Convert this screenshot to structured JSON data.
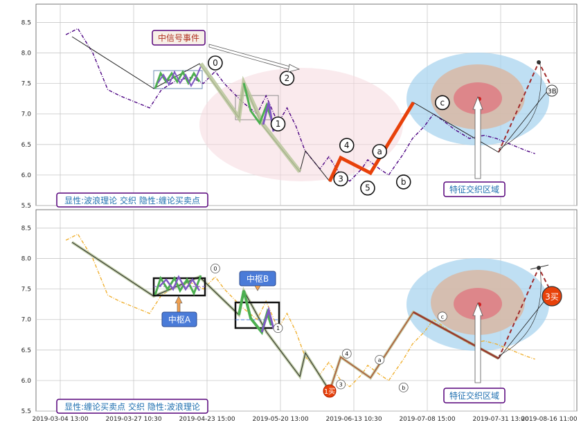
{
  "colors": {
    "grid": "#c8c8c8",
    "price_top": "#4b0082",
    "price_bottom": "#f0b030",
    "wave_orange": "#e8410a",
    "pink_ellipse": "#f6d9de",
    "blue_ellipse": "#a9d4ef",
    "tan_ellipse": "#d8b9a3",
    "red_ellipse": "#de7c84",
    "callout_fill": "#4a7bd8",
    "textbox_border": "#55007a",
    "textbox_text": "#1e6fb0",
    "signal_text": "#b03020",
    "dashed_projection": "#a02a2a"
  },
  "chart_data": [
    {
      "type": "line",
      "title": "",
      "xlabel": "",
      "ylabel": "",
      "ylim": [
        5.5,
        8.8
      ],
      "yticks": [
        "5.5",
        "6.0",
        "6.5",
        "7.0",
        "7.5",
        "8.0",
        "8.5"
      ],
      "grid": true,
      "series": [
        {
          "x": [
            "2019-03-04",
            "2019-03-08",
            "2019-03-13",
            "2019-03-18",
            "2019-03-22",
            "2019-03-27",
            "2019-04-01",
            "2019-04-05",
            "2019-04-10",
            "2019-04-15",
            "2019-04-19",
            "2019-04-23",
            "2019-04-26",
            "2019-05-02",
            "2019-05-07",
            "2019-05-10",
            "2019-05-14",
            "2019-05-17",
            "2019-05-20",
            "2019-05-23",
            "2019-05-28",
            "2019-05-31",
            "2019-06-04",
            "2019-06-07",
            "2019-06-11",
            "2019-06-13",
            "2019-06-17",
            "2019-06-20",
            "2019-06-25",
            "2019-06-28",
            "2019-07-02",
            "2019-07-05",
            "2019-07-08",
            "2019-07-12",
            "2019-07-17",
            "2019-07-22",
            "2019-07-26",
            "2019-07-31",
            "2019-08-05",
            "2019-08-08"
          ],
          "y": [
            8.3,
            8.4,
            8.0,
            7.4,
            7.3,
            7.2,
            7.1,
            7.4,
            7.55,
            7.6,
            7.5,
            7.7,
            7.5,
            7.2,
            7.0,
            7.3,
            6.85,
            7.1,
            6.8,
            6.4,
            6.1,
            6.3,
            6.0,
            5.9,
            6.1,
            6.25,
            6.1,
            6.0,
            6.35,
            6.6,
            6.8,
            7.0,
            6.9,
            6.75,
            6.6,
            6.65,
            6.6,
            6.5,
            6.4,
            6.35
          ]
        }
      ],
      "wave_points": [
        {
          "label": "0",
          "x": "2019-04-23",
          "y": 7.7
        },
        {
          "label": "1",
          "x": "2019-05-14",
          "y": 6.95
        },
        {
          "label": "2",
          "x": "2019-05-17",
          "y": 7.45
        },
        {
          "label": "3",
          "x": "2019-06-04",
          "y": 6.05
        },
        {
          "label": "4",
          "x": "2019-06-06",
          "y": 6.35
        },
        {
          "label": "5",
          "x": "2019-06-13",
          "y": 5.9
        },
        {
          "label": "a",
          "x": "2019-06-17",
          "y": 6.25
        },
        {
          "label": "b",
          "x": "2019-06-25",
          "y": 6.0
        },
        {
          "label": "c",
          "x": "2019-07-08",
          "y": 7.05
        }
      ],
      "projection_label": "3B",
      "signal_label": "中信号事件",
      "region_label": "特征交织区域",
      "box_label": "显性:波浪理论 交织 隐性:缠论买卖点"
    },
    {
      "type": "line",
      "title": "",
      "xlabel": "",
      "ylabel": "",
      "ylim": [
        5.5,
        8.8
      ],
      "yticks": [
        "5.5",
        "6.0",
        "6.5",
        "7.0",
        "7.5",
        "8.0",
        "8.5"
      ],
      "grid": true,
      "xticks": [
        "2019-03-04 13:00",
        "2019-03-27 10:30",
        "2019-04-23 15:00",
        "2019-05-20 13:00",
        "2019-06-13 10:30",
        "2019-07-08 15:00",
        "2019-07-31 13:00",
        "2019-08-16 11:00"
      ],
      "series": [
        {
          "x": [
            "2019-03-04",
            "2019-03-08",
            "2019-03-13",
            "2019-03-18",
            "2019-03-22",
            "2019-03-27",
            "2019-04-01",
            "2019-04-05",
            "2019-04-10",
            "2019-04-15",
            "2019-04-19",
            "2019-04-23",
            "2019-04-26",
            "2019-05-02",
            "2019-05-07",
            "2019-05-10",
            "2019-05-14",
            "2019-05-17",
            "2019-05-20",
            "2019-05-23",
            "2019-05-28",
            "2019-05-31",
            "2019-06-04",
            "2019-06-07",
            "2019-06-11",
            "2019-06-13",
            "2019-06-17",
            "2019-06-20",
            "2019-06-25",
            "2019-06-28",
            "2019-07-02",
            "2019-07-05",
            "2019-07-08",
            "2019-07-12",
            "2019-07-17",
            "2019-07-22",
            "2019-07-26",
            "2019-07-31",
            "2019-08-05",
            "2019-08-08"
          ],
          "y": [
            8.3,
            8.4,
            8.0,
            7.4,
            7.3,
            7.2,
            7.1,
            7.4,
            7.55,
            7.6,
            7.5,
            7.7,
            7.5,
            7.2,
            7.0,
            7.3,
            6.85,
            7.1,
            6.8,
            6.4,
            6.1,
            6.3,
            6.0,
            5.9,
            6.1,
            6.25,
            6.1,
            6.0,
            6.35,
            6.6,
            6.8,
            7.0,
            6.9,
            6.75,
            6.6,
            6.65,
            6.6,
            6.5,
            6.4,
            6.35
          ]
        }
      ],
      "pivot_a_label": "中枢A",
      "pivot_b_label": "中枢B",
      "buy1_label": "1买",
      "buy3_label": "3买",
      "region_label": "特征交织区域",
      "box_label": "显性:缠论买卖点 交织 隐性:波浪理论",
      "point_labels": [
        "0",
        "1",
        "3",
        "4",
        "a",
        "b",
        "c"
      ]
    }
  ]
}
